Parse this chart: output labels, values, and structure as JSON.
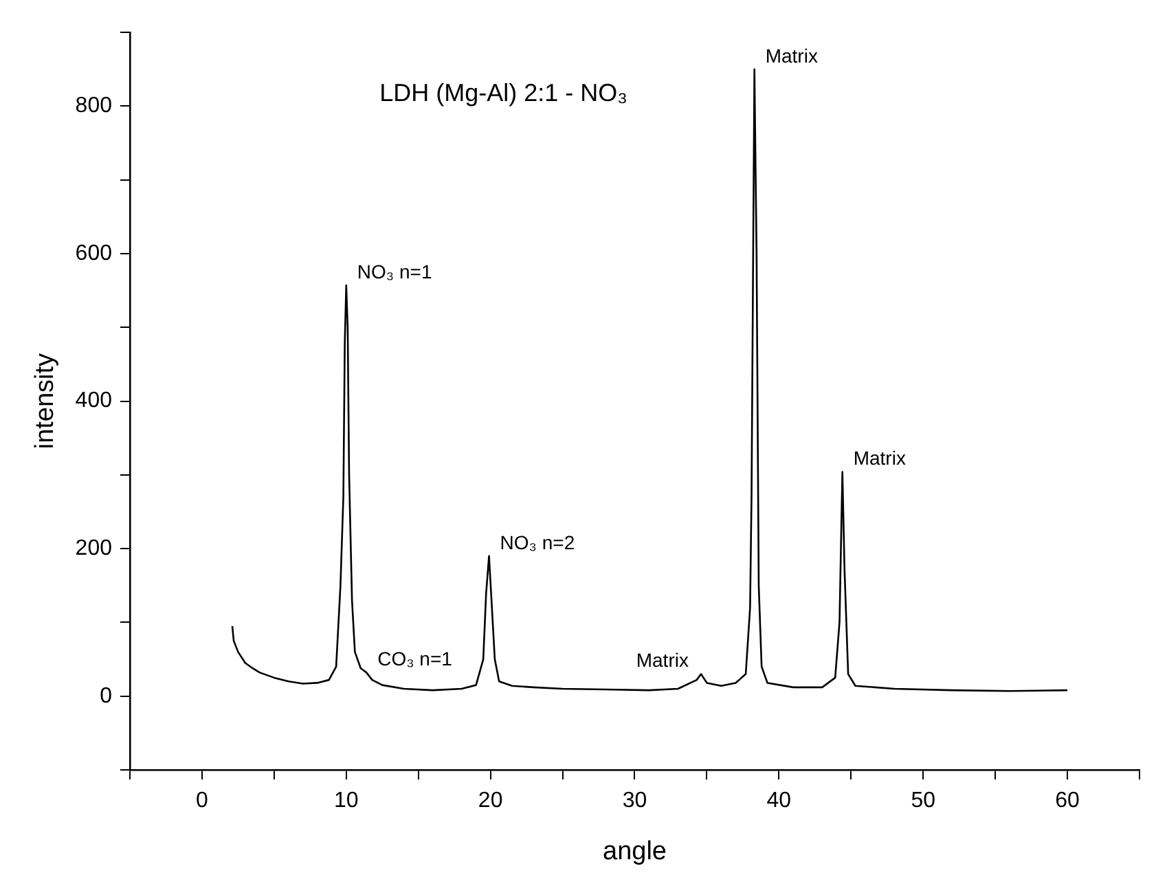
{
  "chart_data": {
    "type": "line",
    "title": "LDH (Mg-Al) 2:1 - NO₃",
    "xlabel": "angle",
    "ylabel": "intensity",
    "xlim": [
      -5,
      65
    ],
    "ylim": [
      -100,
      900
    ],
    "xticks": [
      {
        "value": -5,
        "label": null
      },
      0,
      {
        "value": 5,
        "label": null
      },
      10,
      {
        "value": 15,
        "label": null
      },
      20,
      {
        "value": 25,
        "label": null
      },
      30,
      {
        "value": 35,
        "label": null
      },
      40,
      {
        "value": 45,
        "label": null
      },
      50,
      {
        "value": 55,
        "label": null
      },
      60,
      {
        "value": 65,
        "label": null
      }
    ],
    "yticks": [
      {
        "value": -100,
        "label": null
      },
      0,
      {
        "value": 100,
        "label": null
      },
      200,
      {
        "value": 300,
        "label": null
      },
      400,
      {
        "value": 500,
        "label": null
      },
      600,
      {
        "value": 700,
        "label": null
      },
      800,
      {
        "value": 900,
        "label": null
      }
    ],
    "grid": false,
    "legend": false,
    "marker": "none",
    "line_style": "solid",
    "series": [
      {
        "color": "#000000",
        "x": [
          2.1,
          2.2,
          2.5,
          3,
          3.5,
          4,
          5,
          6,
          7,
          8,
          8.8,
          9.3,
          9.6,
          9.8,
          9.9,
          10.0,
          10.1,
          10.2,
          10.4,
          10.6,
          11,
          11.4,
          11.8,
          12.5,
          14,
          16,
          18,
          19,
          19.5,
          19.7,
          19.9,
          20.1,
          20.3,
          20.6,
          21.5,
          23,
          25,
          28,
          31,
          33,
          34.3,
          34.6,
          35,
          36,
          37,
          37.7,
          38.0,
          38.1,
          38.3,
          38.45,
          38.6,
          38.8,
          39.2,
          41,
          43,
          43.9,
          44.2,
          44.4,
          44.55,
          44.8,
          45.3,
          48,
          52,
          56,
          60
        ],
        "values": [
          95,
          75,
          60,
          45,
          38,
          32,
          25,
          20,
          17,
          18,
          22,
          40,
          150,
          270,
          480,
          557,
          500,
          300,
          130,
          60,
          38,
          32,
          22,
          15,
          10,
          8,
          10,
          15,
          50,
          140,
          190,
          120,
          50,
          20,
          14,
          12,
          10,
          9,
          8,
          10,
          22,
          30,
          18,
          14,
          18,
          30,
          120,
          270,
          850,
          600,
          150,
          40,
          18,
          12,
          12,
          25,
          100,
          304,
          170,
          30,
          14,
          10,
          8,
          7,
          8
        ]
      }
    ],
    "annotations": [
      {
        "text": "NO₃ n=1",
        "x": 10,
        "y": 557
      },
      {
        "text": "CO₃ n=1",
        "x": 11.4,
        "y": 32
      },
      {
        "text": "NO₃ n=2",
        "x": 19.9,
        "y": 190
      },
      {
        "text": "Matrix",
        "x": 34.5,
        "y": 30
      },
      {
        "text": "Matrix",
        "x": 38.3,
        "y": 850
      },
      {
        "text": "Matrix",
        "x": 44.4,
        "y": 304
      }
    ]
  }
}
